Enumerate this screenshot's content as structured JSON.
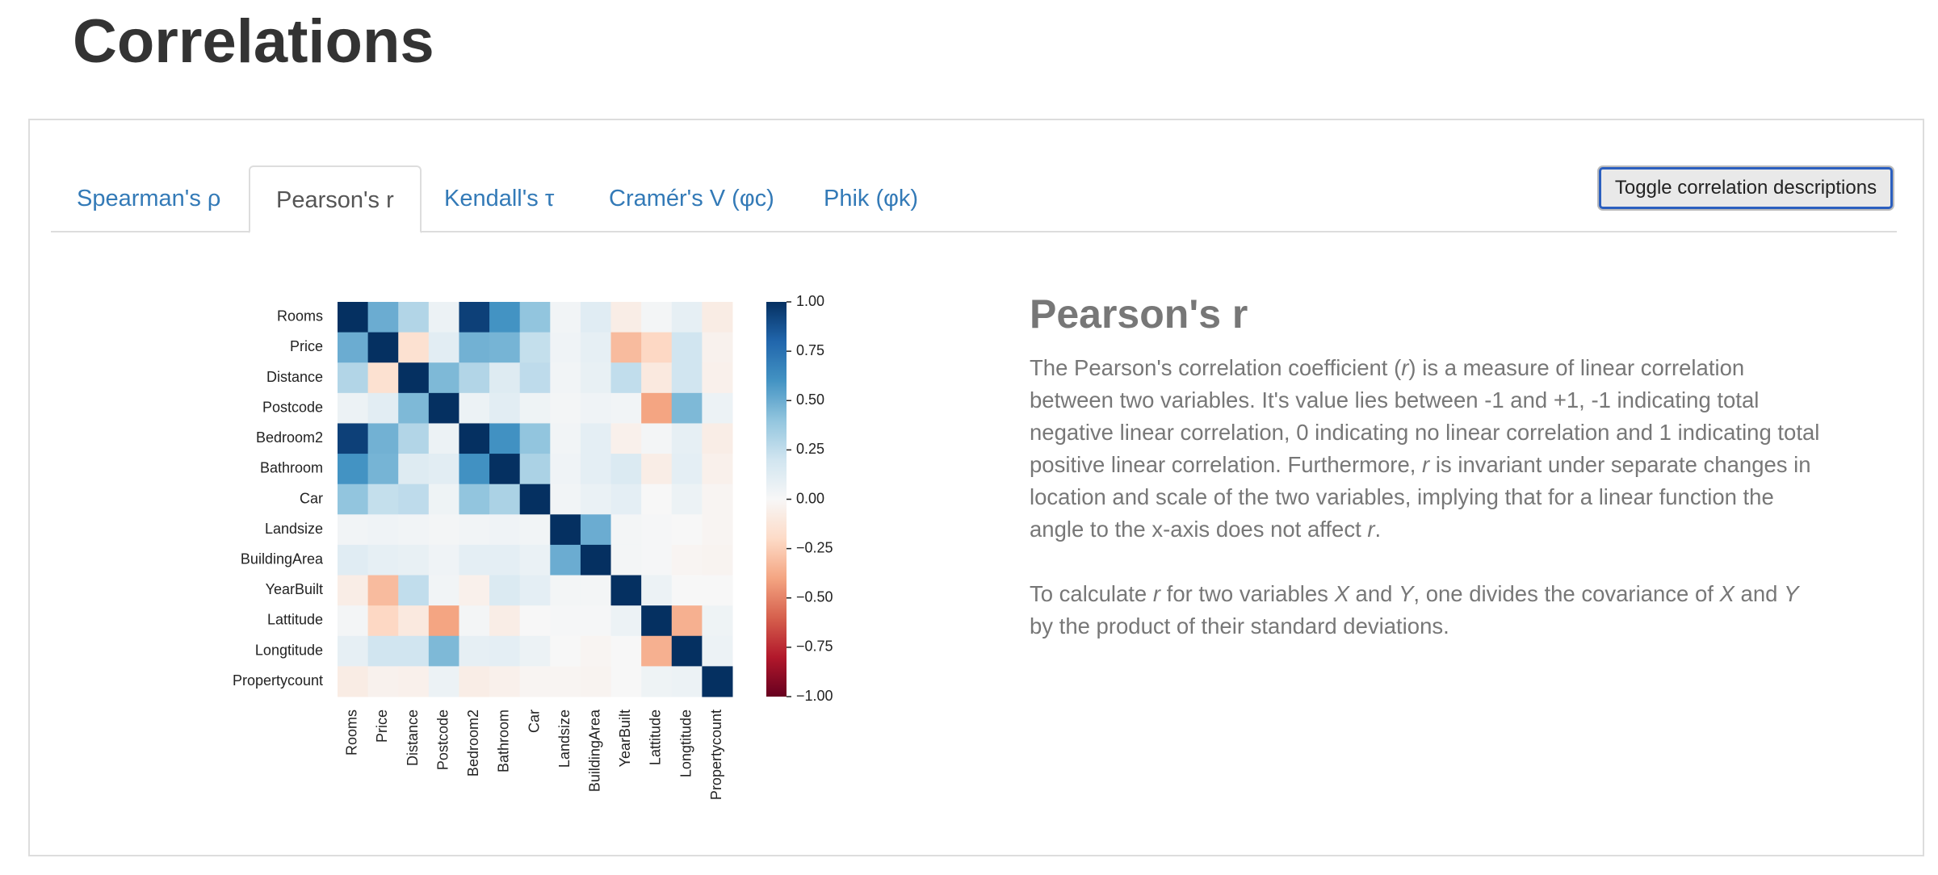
{
  "header": {
    "title": "Correlations"
  },
  "tabs": [
    "Spearman's ρ",
    "Pearson's r",
    "Kendall's τ",
    "Cramér's V (φc)",
    "Phik (φk)"
  ],
  "active_tab": 1,
  "button": "Toggle correlation descriptions",
  "chart_data": {
    "type": "heatmap",
    "categories": [
      "Rooms",
      "Price",
      "Distance",
      "Postcode",
      "Bedroom2",
      "Bathroom",
      "Car",
      "Landsize",
      "BuildingArea",
      "YearBuilt",
      "Lattitude",
      "Longtitude",
      "Propertycount"
    ],
    "values": [
      [
        1,
        0.5,
        0.3,
        0.06,
        0.94,
        0.6,
        0.4,
        0.03,
        0.12,
        -0.07,
        0.02,
        0.09,
        -0.08
      ],
      [
        0.5,
        1,
        -0.16,
        0.11,
        0.48,
        0.47,
        0.24,
        0.04,
        0.09,
        -0.32,
        -0.21,
        0.2,
        -0.04
      ],
      [
        0.3,
        -0.16,
        1,
        0.45,
        0.3,
        0.13,
        0.26,
        0.03,
        0.08,
        0.25,
        -0.1,
        0.2,
        -0.05
      ],
      [
        0.06,
        0.11,
        0.45,
        1,
        0.06,
        0.11,
        0.05,
        0.02,
        0.04,
        0.03,
        -0.4,
        0.45,
        0.06
      ],
      [
        0.94,
        0.48,
        0.3,
        0.06,
        1,
        0.61,
        0.4,
        0.03,
        0.1,
        -0.05,
        0.02,
        0.09,
        -0.07
      ],
      [
        0.6,
        0.47,
        0.13,
        0.11,
        0.61,
        1,
        0.32,
        0.04,
        0.1,
        0.15,
        -0.07,
        0.1,
        -0.05
      ],
      [
        0.4,
        0.24,
        0.26,
        0.05,
        0.4,
        0.32,
        1,
        0.03,
        0.07,
        0.1,
        0,
        0.06,
        -0.02
      ],
      [
        0.03,
        0.04,
        0.03,
        0.02,
        0.03,
        0.04,
        0.03,
        1,
        0.5,
        0.02,
        0.01,
        0,
        -0.02
      ],
      [
        0.12,
        0.09,
        0.08,
        0.04,
        0.1,
        0.1,
        0.07,
        0.5,
        1,
        0.02,
        0.01,
        -0.02,
        -0.03
      ],
      [
        -0.07,
        -0.32,
        0.25,
        0.03,
        -0.05,
        0.15,
        0.1,
        0.02,
        0.02,
        1,
        0.06,
        0,
        0
      ],
      [
        0.02,
        -0.21,
        -0.1,
        -0.4,
        0.02,
        -0.07,
        0,
        0.01,
        0.01,
        0.06,
        1,
        -0.36,
        0.05
      ],
      [
        0.09,
        0.2,
        0.2,
        0.45,
        0.09,
        0.1,
        0.06,
        0,
        -0.02,
        0,
        -0.36,
        1,
        0.06
      ],
      [
        -0.08,
        -0.04,
        -0.05,
        0.06,
        -0.07,
        -0.05,
        -0.02,
        -0.02,
        -0.03,
        0,
        0.05,
        0.06,
        1
      ]
    ],
    "zlim": [
      -1,
      1
    ],
    "zticks": [
      {
        "value": 1,
        "label": "1.00"
      },
      {
        "value": 0.75,
        "label": "0.75"
      },
      {
        "value": 0.5,
        "label": "0.50"
      },
      {
        "value": 0.25,
        "label": "0.25"
      },
      {
        "value": 0,
        "label": "0.00"
      },
      {
        "value": -0.25,
        "label": "−0.25"
      },
      {
        "value": -0.5,
        "label": "−0.50"
      },
      {
        "value": -0.75,
        "label": "−0.75"
      },
      {
        "value": -1,
        "label": "−1.00"
      }
    ],
    "colormap": [
      "#67001f",
      "#b2182b",
      "#d6604d",
      "#f4a582",
      "#fddbc7",
      "#f7f7f7",
      "#d1e5f0",
      "#92c5de",
      "#4393c3",
      "#2166ac",
      "#053061"
    ]
  },
  "description": {
    "title": "Pearson's r",
    "paragraphs": [
      [
        {
          "text": "The Pearson's correlation coefficient ("
        },
        {
          "text": "r",
          "italic": true
        },
        {
          "text": ") is a measure of linear correlation between two variables. It's value lies between -1 and +1, -1 indicating total negative linear correlation, 0 indicating no linear correlation and 1 indicating total positive linear correlation. Furthermore, "
        },
        {
          "text": "r",
          "italic": true
        },
        {
          "text": " is invariant under separate changes in location and scale of the two variables, implying that for a linear function the angle to the x-axis does not affect "
        },
        {
          "text": "r",
          "italic": true
        },
        {
          "text": "."
        }
      ],
      [
        {
          "text": "To calculate "
        },
        {
          "text": "r",
          "italic": true
        },
        {
          "text": " for two variables "
        },
        {
          "text": "X",
          "italic": true
        },
        {
          "text": " and "
        },
        {
          "text": "Y",
          "italic": true
        },
        {
          "text": ", one divides the covariance of "
        },
        {
          "text": "X",
          "italic": true
        },
        {
          "text": " and "
        },
        {
          "text": "Y",
          "italic": true
        },
        {
          "text": " by the product of their standard deviations."
        }
      ]
    ]
  }
}
